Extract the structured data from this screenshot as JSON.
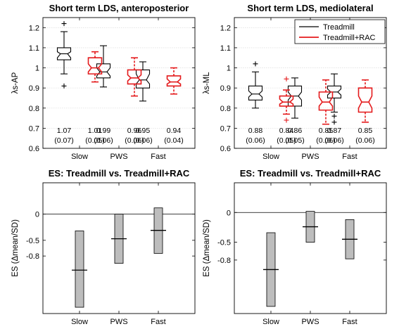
{
  "chart_data": [
    {
      "type": "box",
      "title": "Short term LDS, anteroposterior",
      "ylabel": "λs-AP",
      "ylim": [
        0.6,
        1.25
      ],
      "yticks": [
        0.6,
        0.7,
        0.8,
        0.9,
        1,
        1.1,
        1.2
      ],
      "ytick_labels": [
        "0.6",
        "0.7",
        "0.8",
        "0.9",
        "1",
        "1.1",
        "1.2"
      ],
      "categories": [
        "Slow",
        "PWS",
        "Fast"
      ],
      "grid": true,
      "series": [
        {
          "name": "Treadmill",
          "color": "#000000",
          "boxes": [
            {
              "q1": 1.04,
              "median": 1.07,
              "q3": 1.1,
              "notch_low": 1.05,
              "notch_high": 1.08,
              "wlow": 0.97,
              "whigh": 1.18,
              "outliers": [
                1.22,
                0.91
              ]
            },
            {
              "q1": 0.95,
              "median": 0.98,
              "q3": 1.02,
              "notch_low": 0.96,
              "notch_high": 1.0,
              "wlow": 0.905,
              "whigh": 1.11,
              "outliers": []
            },
            {
              "q1": 0.9,
              "median": 0.94,
              "q3": 0.99,
              "notch_low": 0.92,
              "notch_high": 0.97,
              "wlow": 0.835,
              "whigh": 1.03,
              "outliers": []
            }
          ],
          "annotations": [
            [
              "1.07",
              "(0.07)"
            ],
            [
              "0.99",
              "(0.06)"
            ],
            [
              "0.95",
              "(0.06)"
            ]
          ]
        },
        {
          "name": "Treadmill+RAC",
          "color": "#e41a1c",
          "boxes": [
            {
              "q1": 0.97,
              "median": 1.0,
              "q3": 1.05,
              "notch_low": 0.98,
              "notch_high": 1.02,
              "wlow": 0.93,
              "whigh": 1.08,
              "outliers": []
            },
            {
              "q1": 0.92,
              "median": 0.95,
              "q3": 0.99,
              "notch_low": 0.935,
              "notch_high": 0.965,
              "wlow": 0.86,
              "whigh": 1.05,
              "outliers": []
            },
            {
              "q1": 0.91,
              "median": 0.93,
              "q3": 0.96,
              "notch_low": 0.92,
              "notch_high": 0.945,
              "wlow": 0.87,
              "whigh": 1.0,
              "outliers": []
            }
          ],
          "annotations": [
            [
              "1.01",
              "(0.05)"
            ],
            [
              "0.96",
              "(0.06)"
            ],
            [
              "0.94",
              "(0.04)"
            ]
          ]
        }
      ],
      "legend": null
    },
    {
      "type": "box",
      "title": "Short term LDS, mediolateral",
      "ylabel": "λs-ML",
      "ylim": [
        0.6,
        1.25
      ],
      "yticks": [
        0.6,
        0.7,
        0.8,
        0.9,
        1,
        1.1,
        1.2
      ],
      "ytick_labels": [
        "0.6",
        "0.7",
        "0.8",
        "0.9",
        "1",
        "1.1",
        "1.2"
      ],
      "categories": [
        "Slow",
        "PWS",
        "Fast"
      ],
      "grid": true,
      "series": [
        {
          "name": "Treadmill",
          "color": "#000000",
          "boxes": [
            {
              "q1": 0.84,
              "median": 0.87,
              "q3": 0.91,
              "notch_low": 0.855,
              "notch_high": 0.885,
              "wlow": 0.8,
              "whigh": 0.98,
              "outliers": [
                1.02
              ]
            },
            {
              "q1": 0.81,
              "median": 0.86,
              "q3": 0.91,
              "notch_low": 0.84,
              "notch_high": 0.88,
              "wlow": 0.75,
              "whigh": 0.95,
              "outliers": []
            },
            {
              "q1": 0.85,
              "median": 0.88,
              "q3": 0.91,
              "notch_low": 0.865,
              "notch_high": 0.895,
              "wlow": 0.78,
              "whigh": 0.97,
              "outliers": [
                0.76,
                0.73
              ]
            }
          ],
          "annotations": [
            [
              "0.88",
              "(0.06)"
            ],
            [
              "0.86",
              "(0.05)"
            ],
            [
              "0.87",
              "(0.06)"
            ]
          ]
        },
        {
          "name": "Treadmill+RAC",
          "color": "#e41a1c",
          "boxes": [
            {
              "q1": 0.81,
              "median": 0.83,
              "q3": 0.86,
              "notch_low": 0.82,
              "notch_high": 0.845,
              "wlow": 0.77,
              "whigh": 0.89,
              "outliers": [
                0.945,
                0.74
              ]
            },
            {
              "q1": 0.79,
              "median": 0.83,
              "q3": 0.88,
              "notch_low": 0.81,
              "notch_high": 0.855,
              "wlow": 0.72,
              "whigh": 0.94,
              "outliers": []
            },
            {
              "q1": 0.78,
              "median": 0.83,
              "q3": 0.9,
              "notch_low": 0.8,
              "notch_high": 0.86,
              "wlow": 0.73,
              "whigh": 0.94,
              "outliers": []
            }
          ],
          "annotations": [
            [
              "0.84",
              "(0.05)"
            ],
            [
              "0.85",
              "(0.06)"
            ],
            [
              "0.85",
              "(0.06)"
            ]
          ]
        }
      ],
      "legend": {
        "placement": "top-right",
        "entries": [
          "Treadmill",
          "Treadmill+RAC"
        ]
      }
    },
    {
      "type": "bar",
      "title": "ES: Treadmill vs. Treadmill+RAC",
      "ylabel": "ES (Δmean/SD)",
      "ylim": [
        -1.9,
        0.6
      ],
      "yticks": [
        0,
        -0.5,
        -0.8
      ],
      "ytick_labels": [
        "0",
        "-0.5",
        "-0.8"
      ],
      "categories": [
        "Slow",
        "PWS",
        "Fast"
      ],
      "zero_line": true,
      "bar_color": "#bdbdbd",
      "intervals": [
        {
          "low": -1.78,
          "high": -0.32,
          "estimate": -1.07
        },
        {
          "low": -0.94,
          "high": 0.0,
          "estimate": -0.47
        },
        {
          "low": -0.75,
          "high": 0.12,
          "estimate": -0.31
        }
      ]
    },
    {
      "type": "bar",
      "title": "ES: Treadmill vs. Treadmill+RAC",
      "ylabel": "ES (Δmean/SD)",
      "ylim": [
        -1.7,
        0.5
      ],
      "yticks": [
        0,
        -0.5,
        -0.8
      ],
      "ytick_labels": [
        "0",
        "-0.5",
        "-0.8"
      ],
      "categories": [
        "Slow",
        "PWS",
        "Fast"
      ],
      "zero_line": true,
      "bar_color": "#bdbdbd",
      "intervals": [
        {
          "low": -1.58,
          "high": -0.34,
          "estimate": -0.96
        },
        {
          "low": -0.5,
          "high": 0.02,
          "estimate": -0.24
        },
        {
          "low": -0.78,
          "high": -0.12,
          "estimate": -0.45
        }
      ]
    }
  ]
}
